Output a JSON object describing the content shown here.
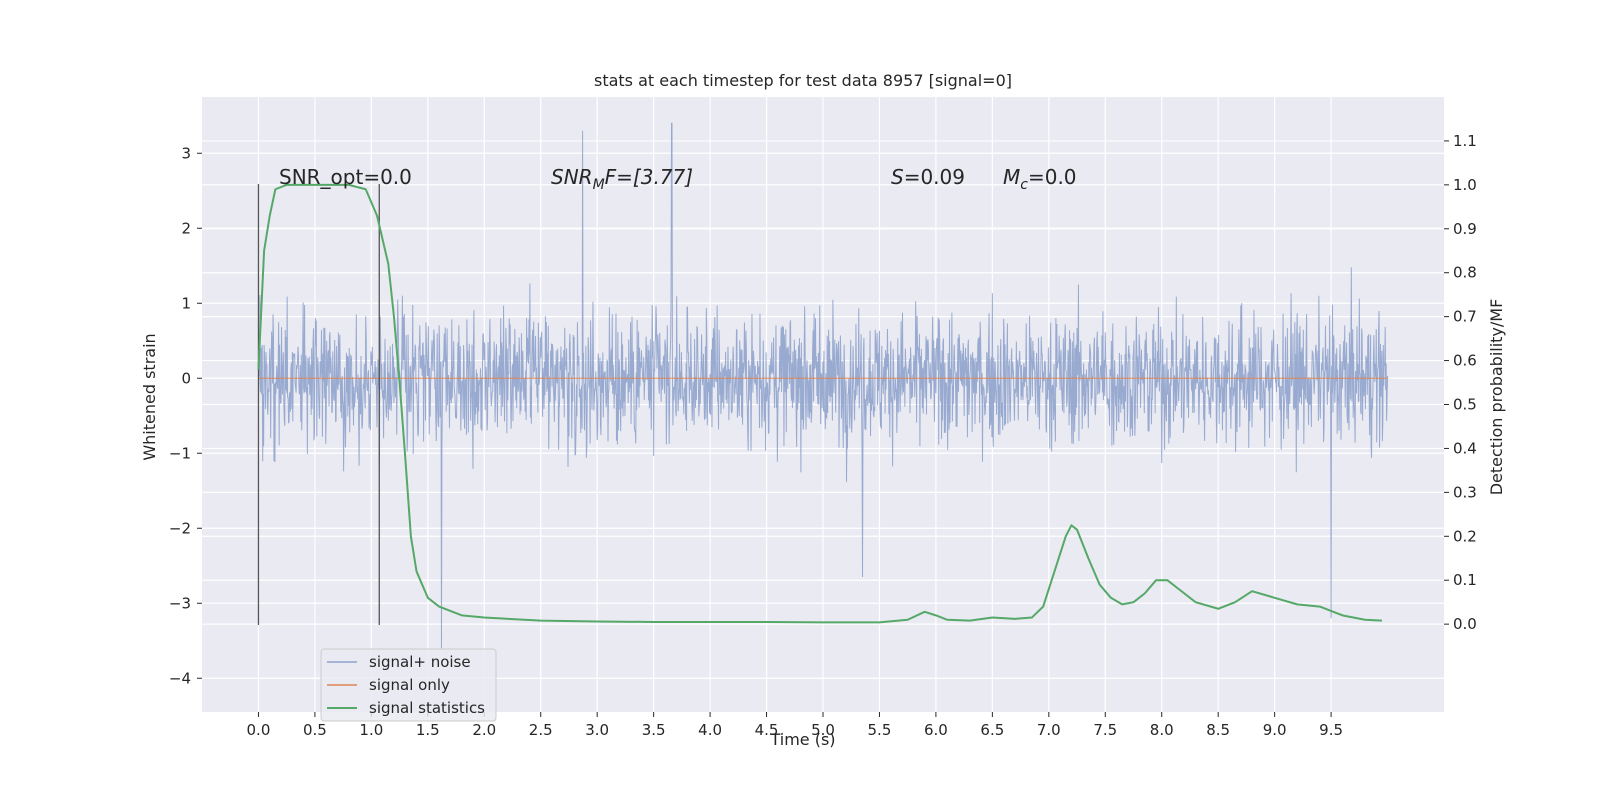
{
  "chart_data": {
    "type": "line",
    "title": "stats at each timestep for test data 8957 [signal=0]",
    "xlabel": "Time (s)",
    "ylabel": "Whitened strain",
    "y2label": "Detection probability/MF",
    "xlim": [
      -0.5,
      10.5
    ],
    "ylim": [
      -4.45,
      3.75
    ],
    "y2lim": [
      -0.2,
      1.2
    ],
    "x_ticks": [
      0.0,
      0.5,
      1.0,
      1.5,
      2.0,
      2.5,
      3.0,
      3.5,
      4.0,
      4.5,
      5.0,
      5.5,
      6.0,
      6.5,
      7.0,
      7.5,
      8.0,
      8.5,
      9.0,
      9.5
    ],
    "x_tick_labels": [
      "0.0",
      "0.5",
      "1.0",
      "1.5",
      "2.0",
      "2.5",
      "3.0",
      "3.5",
      "4.0",
      "4.5",
      "5.0",
      "5.5",
      "6.0",
      "6.5",
      "7.0",
      "7.5",
      "8.0",
      "8.5",
      "9.0",
      "9.5"
    ],
    "y_ticks": [
      3,
      2,
      1,
      0,
      -1,
      -2,
      -3,
      -4
    ],
    "y_tick_labels": [
      "3",
      "2",
      "1",
      "0",
      "−1",
      "−2",
      "−3",
      "−4"
    ],
    "y2_ticks": [
      1.1,
      1.0,
      0.9,
      0.8,
      0.7,
      0.6,
      0.5,
      0.4,
      0.3,
      0.2,
      0.1,
      0.0
    ],
    "y2_tick_labels": [
      "1.1",
      "1.0",
      "0.9",
      "0.8",
      "0.7",
      "0.6",
      "0.5",
      "0.4",
      "0.3",
      "0.2",
      "0.1",
      "0.0"
    ],
    "grid": true,
    "legend_placement": "lower-left",
    "annotations": {
      "snr_opt": "SNR_opt=0.0",
      "snr_mf_base": "SNR",
      "snr_mf_sub": "M",
      "snr_mf_rest": "F=[3.77]",
      "s_sym": "S",
      "s_val": "=0.09",
      "mc_base": "M",
      "mc_sub": "c",
      "mc_val": "=0.0"
    },
    "vertical_markers": [
      0.0,
      1.07
    ],
    "series": [
      {
        "name": "signal+ noise",
        "color": "#8fa3cc",
        "time_range": [
          0.0,
          10.0
        ],
        "typical_envelope": [
          -1.5,
          1.5
        ],
        "extremes": [
          [
            2.87,
            3.3
          ],
          [
            3.66,
            3.4
          ],
          [
            1.62,
            -3.6
          ],
          [
            9.5,
            -3.2
          ],
          [
            5.35,
            -2.65
          ]
        ]
      },
      {
        "name": "signal only",
        "color": "#dd8452",
        "x": [
          0.0,
          10.0
        ],
        "values": [
          0.0,
          0.0
        ]
      },
      {
        "name": "signal statistics",
        "color": "#55a868",
        "axis": "right",
        "x": [
          0.0,
          0.05,
          0.1,
          0.15,
          0.25,
          0.5,
          0.8,
          0.95,
          1.05,
          1.15,
          1.2,
          1.25,
          1.3,
          1.35,
          1.4,
          1.5,
          1.6,
          1.7,
          1.8,
          2.0,
          2.5,
          3.0,
          3.5,
          4.0,
          4.5,
          5.0,
          5.5,
          5.75,
          5.9,
          6.0,
          6.1,
          6.3,
          6.5,
          6.7,
          6.85,
          6.95,
          7.05,
          7.15,
          7.2,
          7.25,
          7.35,
          7.45,
          7.55,
          7.65,
          7.75,
          7.85,
          7.95,
          8.05,
          8.15,
          8.3,
          8.5,
          8.65,
          8.8,
          9.0,
          9.2,
          9.4,
          9.6,
          9.8,
          9.95
        ],
        "values": [
          0.58,
          0.85,
          0.93,
          0.99,
          1.0,
          1.0,
          1.0,
          0.99,
          0.93,
          0.82,
          0.7,
          0.55,
          0.38,
          0.2,
          0.12,
          0.06,
          0.04,
          0.03,
          0.02,
          0.015,
          0.008,
          0.006,
          0.005,
          0.005,
          0.005,
          0.004,
          0.004,
          0.01,
          0.028,
          0.02,
          0.01,
          0.008,
          0.015,
          0.012,
          0.015,
          0.04,
          0.12,
          0.2,
          0.225,
          0.215,
          0.15,
          0.09,
          0.06,
          0.045,
          0.05,
          0.07,
          0.1,
          0.1,
          0.08,
          0.05,
          0.035,
          0.05,
          0.075,
          0.06,
          0.045,
          0.04,
          0.02,
          0.01,
          0.008
        ]
      }
    ]
  }
}
